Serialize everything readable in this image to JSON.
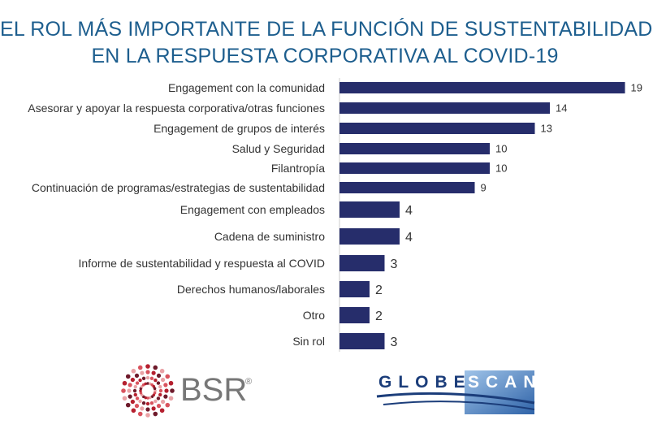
{
  "title_line1": "EL ROL MÁS IMPORTANTE DE LA FUNCIÓN DE SUSTENTABILIDAD",
  "title_line2": "EN LA RESPUESTA CORPORATIVA AL COVID-19",
  "colors": {
    "title": "#1d5e8e",
    "bar": "#262d6b",
    "axis": "#cccccc",
    "bsr_text": "#777777",
    "globescan_blue": "#1b3d7a"
  },
  "chart_data": {
    "type": "bar",
    "orientation": "horizontal",
    "title": "EL ROL MÁS IMPORTANTE DE LA FUNCIÓN DE SUSTENTABILIDAD EN LA RESPUESTA CORPORATIVA AL COVID-19",
    "categories": [
      "Engagement con la comunidad",
      "Asesorar y apoyar la respuesta corporativa/otras funciones",
      "Engagement de grupos de interés",
      "Salud y Seguridad",
      "Filantropía",
      "Continuación de programas/estrategias de  sustentabilidad",
      "Engagement con empleados",
      "Cadena de suministro",
      "Informe de sustentabilidad y respuesta al COVID",
      "Derechos humanos/laborales",
      "Otro",
      "Sin rol"
    ],
    "values": [
      19,
      14,
      13,
      10,
      10,
      9,
      4,
      4,
      3,
      2,
      2,
      3
    ],
    "value_labels": [
      "19",
      "14",
      "13",
      "10",
      "10",
      "9",
      "4",
      "4",
      "3",
      "2",
      "2",
      "3"
    ],
    "xlabel": "",
    "ylabel": "",
    "grid": false,
    "legend": "none"
  },
  "logos": {
    "bsr": "BSR",
    "bsr_mark": "®",
    "globescan_left": "GLOBE",
    "globescan_right": "SCAN"
  }
}
